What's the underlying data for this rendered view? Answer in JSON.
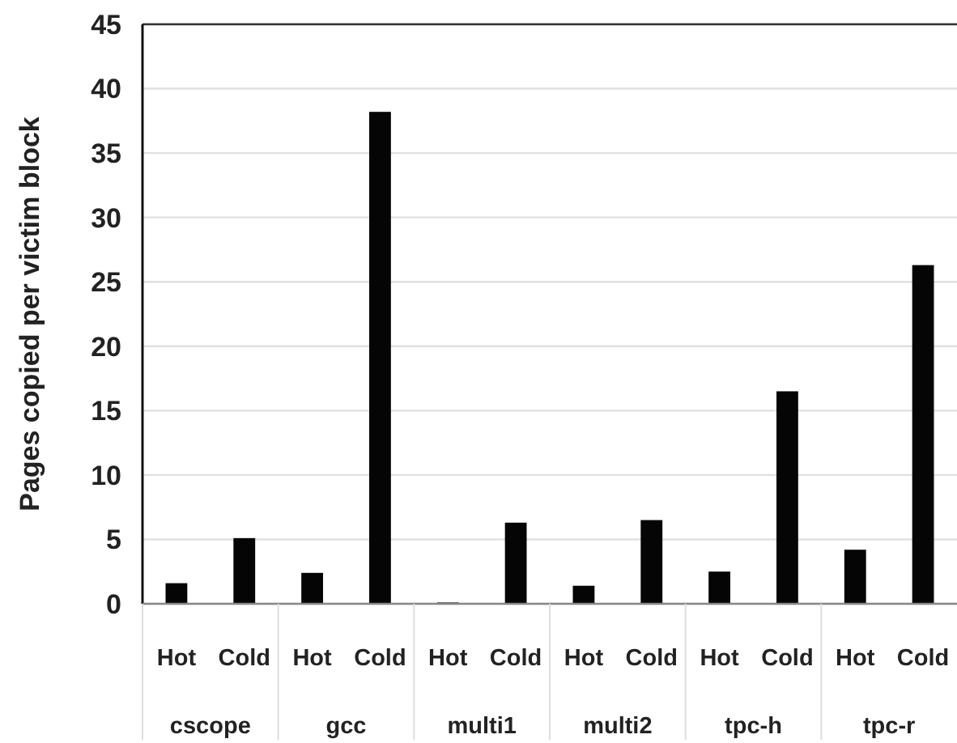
{
  "chart_data": {
    "type": "bar",
    "ylabel": "Pages copied per victim block",
    "categories": [
      "Hot",
      "Cold",
      "Hot",
      "Cold",
      "Hot",
      "Cold",
      "Hot",
      "Cold",
      "Hot",
      "Cold",
      "Hot",
      "Cold"
    ],
    "values": [
      1.6,
      5.1,
      2.4,
      38.2,
      0.1,
      6.3,
      1.4,
      6.5,
      2.5,
      16.5,
      4.2,
      26.3
    ],
    "color": "#050505",
    "annotations": [
      "cscope",
      "gcc",
      "multi1",
      "multi2",
      "tpc-h",
      "tpc-r"
    ],
    "ylim": [
      0,
      45
    ],
    "yticks": [
      0,
      5,
      10,
      15,
      20,
      25,
      30,
      35,
      40,
      45
    ],
    "grid": "y"
  }
}
